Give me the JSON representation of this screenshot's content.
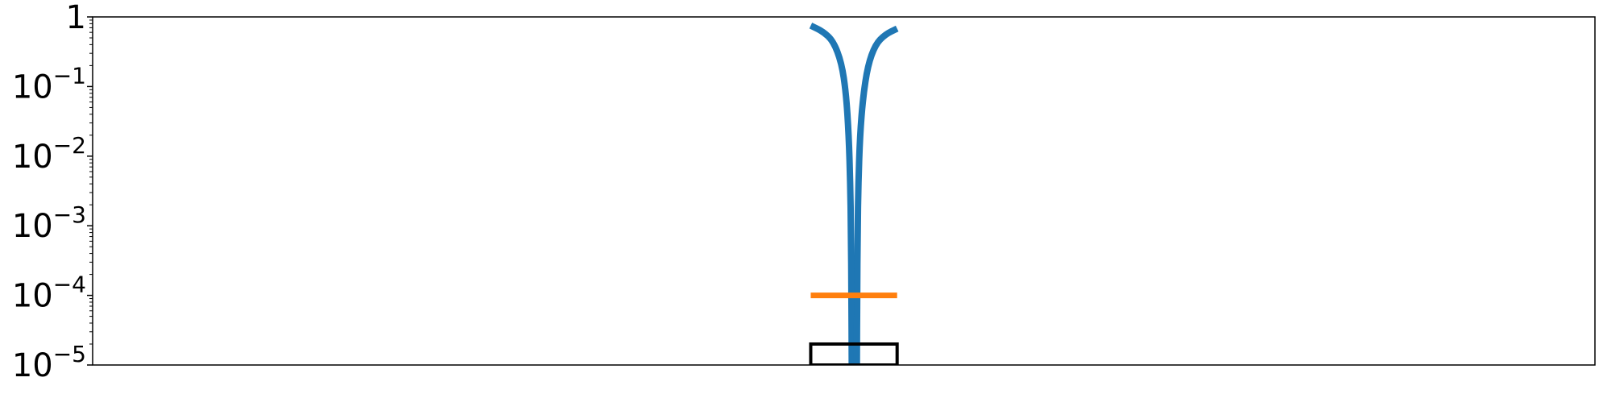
{
  "chart_data": {
    "type": "line",
    "title": "",
    "xlabel": "",
    "ylabel": "",
    "x_axis": {
      "ticks_visible": false,
      "range": [
        0,
        1
      ]
    },
    "y_axis": {
      "scale": "log",
      "range": [
        1e-05,
        1
      ],
      "ticks": [
        {
          "value": 1,
          "base": "1",
          "exp": ""
        },
        {
          "value": 0.1,
          "base": "10",
          "exp": "−1"
        },
        {
          "value": 0.01,
          "base": "10",
          "exp": "−2"
        },
        {
          "value": 0.001,
          "base": "10",
          "exp": "−3"
        },
        {
          "value": 0.0001,
          "base": "10",
          "exp": "−4"
        },
        {
          "value": 1e-05,
          "base": "10",
          "exp": "−5"
        }
      ]
    },
    "grid": false,
    "legend": "none",
    "series": [
      {
        "kind": "curve",
        "color": "#1f77b4",
        "points": [
          [
            0.478,
            0.75
          ],
          [
            0.486,
            0.62
          ],
          [
            0.493,
            0.45
          ],
          [
            0.4985,
            0.22
          ],
          [
            0.5015,
            0.08
          ],
          [
            0.5033,
            0.02
          ],
          [
            0.5043,
            0.004
          ],
          [
            0.5048,
            0.0008
          ],
          [
            0.5051,
            0.0001
          ],
          [
            0.5053,
            1e-05
          ]
        ]
      },
      {
        "kind": "curve",
        "color": "#1f77b4",
        "points": [
          [
            0.5355,
            0.68
          ],
          [
            0.5275,
            0.56
          ],
          [
            0.521,
            0.4
          ],
          [
            0.516,
            0.2
          ],
          [
            0.5128,
            0.07
          ],
          [
            0.5108,
            0.02
          ],
          [
            0.5097,
            0.004
          ],
          [
            0.5092,
            0.0008
          ],
          [
            0.5089,
            0.0001
          ],
          [
            0.5087,
            1e-05
          ]
        ]
      },
      {
        "kind": "hline",
        "color": "#ff7f0e",
        "x": [
          0.478,
          0.5355
        ],
        "y": 0.0001
      },
      {
        "kind": "rect",
        "color": "#000000",
        "x": [
          0.478,
          0.5355
        ],
        "y": [
          1e-05,
          2e-05
        ]
      }
    ]
  }
}
